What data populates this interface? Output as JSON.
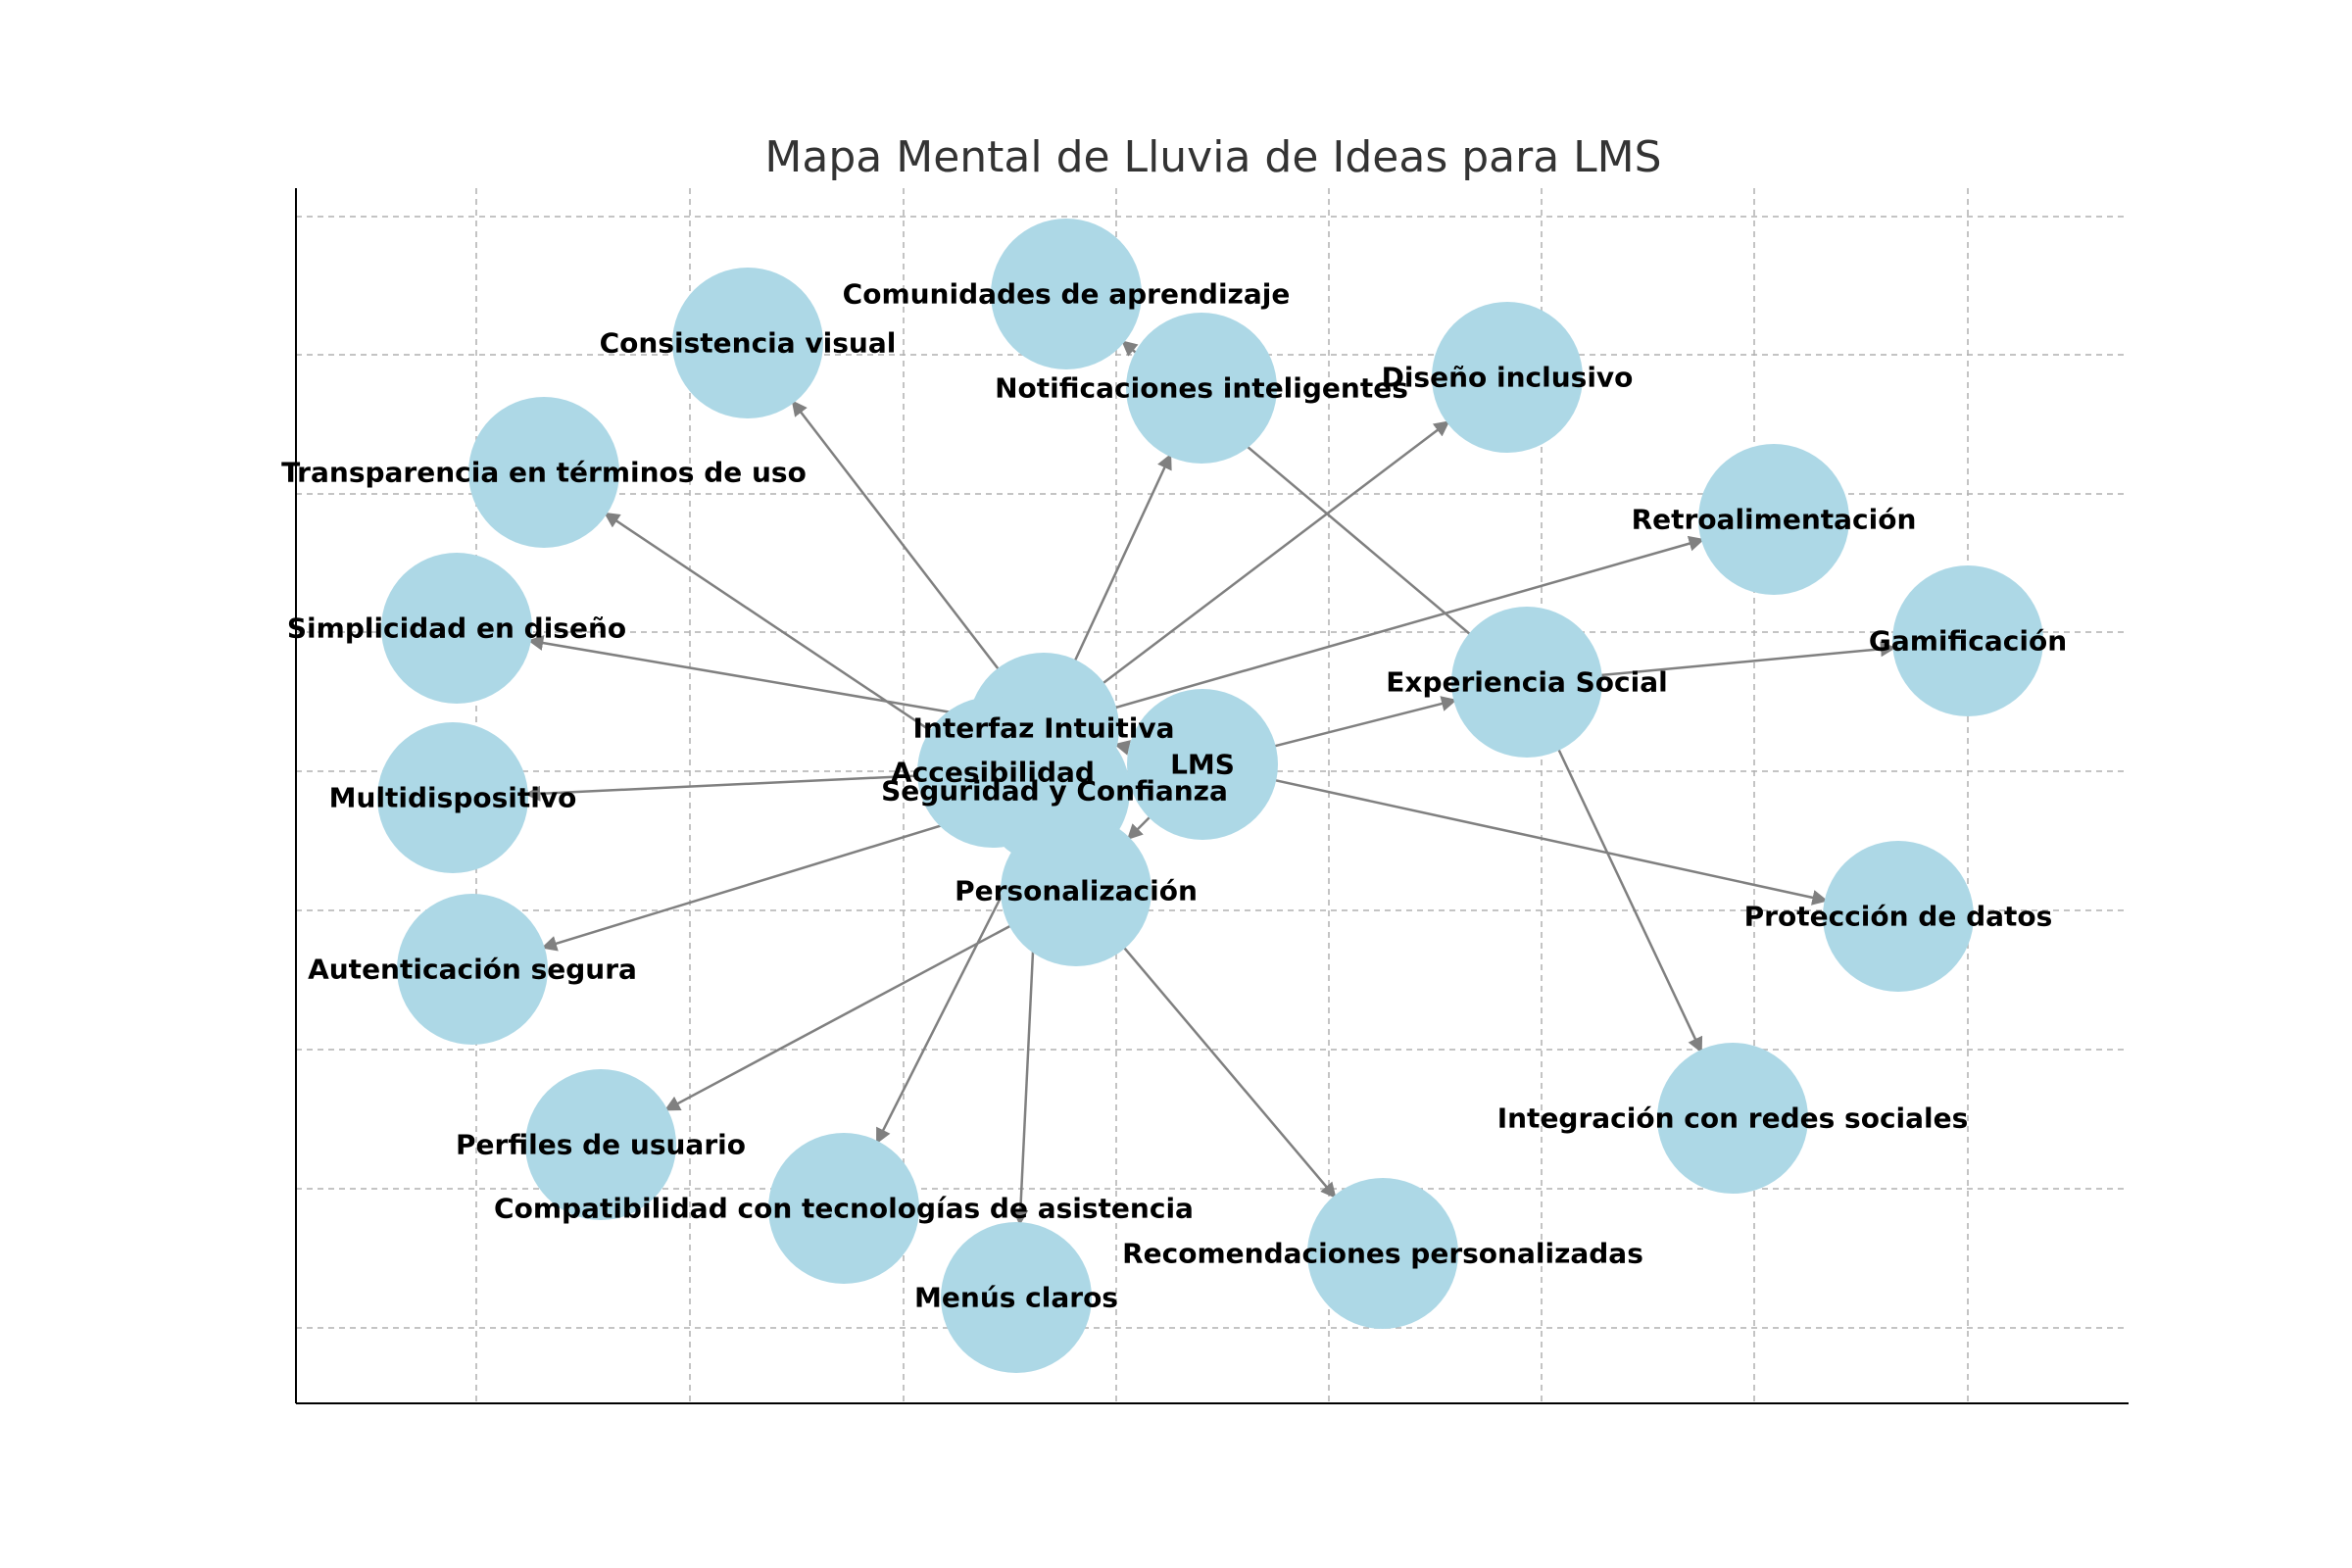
{
  "title": "Mapa Mental de Lluvia de Ideas para LMS",
  "colors": {
    "node": "#add8e6",
    "edge": "#808080",
    "grid": "#b0b0b0",
    "title": "#333333"
  },
  "nodes": [
    {
      "id": "lms",
      "label": "LMS"
    },
    {
      "id": "interfaz",
      "label": "Interfaz Intuitiva"
    },
    {
      "id": "accesibilidad",
      "label": "Accesibilidad"
    },
    {
      "id": "seguridad",
      "label": "Seguridad y Confianza"
    },
    {
      "id": "personalizacion",
      "label": "Personalización"
    },
    {
      "id": "experiencia",
      "label": "Experiencia Social"
    },
    {
      "id": "comunidades",
      "label": "Comunidades de aprendizaje"
    },
    {
      "id": "notificaciones",
      "label": "Notificaciones inteligentes"
    },
    {
      "id": "consistencia",
      "label": "Consistencia visual"
    },
    {
      "id": "diseno_inclusivo",
      "label": "Diseño inclusivo"
    },
    {
      "id": "transparencia",
      "label": "Transparencia en términos de uso"
    },
    {
      "id": "retro",
      "label": "Retroalimentación"
    },
    {
      "id": "simplicidad",
      "label": "Simplicidad en diseño"
    },
    {
      "id": "gamificacion",
      "label": "Gamificación"
    },
    {
      "id": "multidispositivo",
      "label": "Multidispositivo"
    },
    {
      "id": "proteccion",
      "label": "Protección de datos"
    },
    {
      "id": "autenticacion",
      "label": "Autenticación segura"
    },
    {
      "id": "integracion",
      "label": "Integración con redes sociales"
    },
    {
      "id": "perfiles",
      "label": "Perfiles de usuario"
    },
    {
      "id": "compatibilidad",
      "label": "Compatibilidad con tecnologías de asistencia"
    },
    {
      "id": "menus",
      "label": "Menús claros"
    },
    {
      "id": "recomendaciones",
      "label": "Recomendaciones personalizadas"
    }
  ],
  "edges": [
    {
      "from": "lms",
      "to": "interfaz"
    },
    {
      "from": "lms",
      "to": "personalizacion"
    },
    {
      "from": "lms",
      "to": "experiencia"
    },
    {
      "from": "lms",
      "to": "proteccion"
    },
    {
      "from": "interfaz",
      "to": "consistencia"
    },
    {
      "from": "interfaz",
      "to": "simplicidad"
    },
    {
      "from": "interfaz",
      "to": "menus"
    },
    {
      "from": "interfaz",
      "to": "diseno_inclusivo"
    },
    {
      "from": "interfaz",
      "to": "notificaciones"
    },
    {
      "from": "interfaz",
      "to": "retro"
    },
    {
      "from": "accesibilidad",
      "to": "transparencia"
    },
    {
      "from": "accesibilidad",
      "to": "multidispositivo"
    },
    {
      "from": "seguridad",
      "to": "autenticacion"
    },
    {
      "from": "seguridad",
      "to": "compatibilidad"
    },
    {
      "from": "personalizacion",
      "to": "perfiles"
    },
    {
      "from": "personalizacion",
      "to": "recomendaciones"
    },
    {
      "from": "experiencia",
      "to": "comunidades"
    },
    {
      "from": "experiencia",
      "to": "gamificacion"
    },
    {
      "from": "experiencia",
      "to": "integracion"
    }
  ]
}
